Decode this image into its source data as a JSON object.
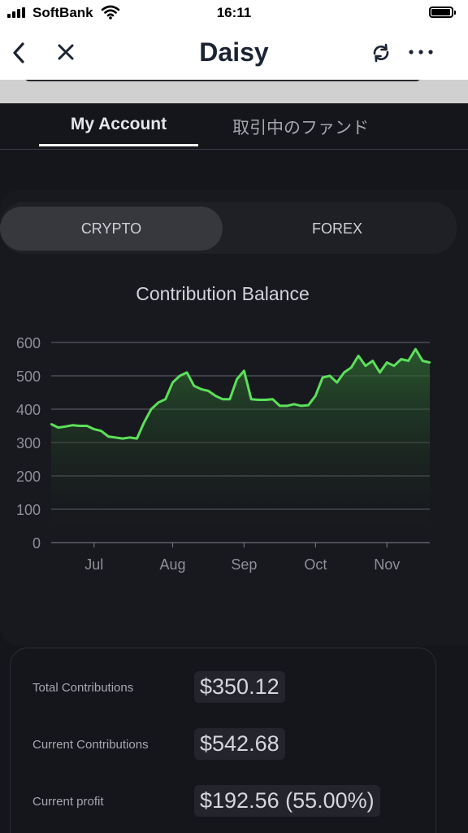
{
  "status_bar": {
    "carrier": "SoftBank",
    "time": "16:11"
  },
  "nav": {
    "title": "Daisy"
  },
  "tabs": [
    {
      "label": "My Account",
      "active": true
    },
    {
      "label": "取引中のファンド",
      "active": false
    }
  ],
  "segments": [
    {
      "label": "CRYPTO",
      "active": true
    },
    {
      "label": "FOREX",
      "active": false
    }
  ],
  "chart": {
    "title": "Contribution Balance"
  },
  "chart_data": {
    "type": "area",
    "title": "Contribution Balance",
    "xlabel": "",
    "ylabel": "",
    "ylim": [
      0,
      600
    ],
    "yticks": [
      0,
      100,
      200,
      300,
      400,
      500,
      600
    ],
    "xticks": [
      "Jul",
      "Aug",
      "Sep",
      "Oct",
      "Nov"
    ],
    "grid": true,
    "line_color": "#5ce05a",
    "series": [
      {
        "x": [
          "Jun 13",
          "Jun 16",
          "Jun 19",
          "Jun 22",
          "Jun 25",
          "Jun 28",
          "Jul 1",
          "Jul 4",
          "Jul 7",
          "Jul 10",
          "Jul 13",
          "Jul 16",
          "Jul 19",
          "Jul 22",
          "Jul 25",
          "Jul 28",
          "Jul 31",
          "Aug 3",
          "Aug 6",
          "Aug 9",
          "Aug 12",
          "Aug 15",
          "Aug 18",
          "Aug 21",
          "Aug 24",
          "Aug 27",
          "Aug 30",
          "Sep 2",
          "Sep 5",
          "Sep 8",
          "Sep 11",
          "Sep 14",
          "Sep 17",
          "Sep 20",
          "Sep 23",
          "Sep 26",
          "Sep 29",
          "Oct 2",
          "Oct 5",
          "Oct 8",
          "Oct 11",
          "Oct 14",
          "Oct 17",
          "Oct 20",
          "Oct 23",
          "Oct 26",
          "Oct 29",
          "Nov 1",
          "Nov 4",
          "Nov 7",
          "Nov 10",
          "Nov 13",
          "Nov 16",
          "Nov 19"
        ],
        "values": [
          355,
          345,
          348,
          352,
          350,
          350,
          340,
          335,
          318,
          315,
          312,
          315,
          312,
          360,
          400,
          420,
          430,
          480,
          500,
          510,
          470,
          460,
          455,
          440,
          430,
          430,
          490,
          515,
          430,
          428,
          428,
          430,
          410,
          410,
          415,
          410,
          412,
          440,
          495,
          500,
          480,
          510,
          525,
          560,
          530,
          545,
          510,
          540,
          530,
          550,
          545,
          580,
          545,
          540
        ]
      }
    ]
  },
  "stats": [
    {
      "label": "Total Contributions",
      "value": "$350.12"
    },
    {
      "label": "Current Contributions",
      "value": "$542.68"
    },
    {
      "label": "Current profit",
      "value": "$192.56 (55.00%)"
    }
  ]
}
